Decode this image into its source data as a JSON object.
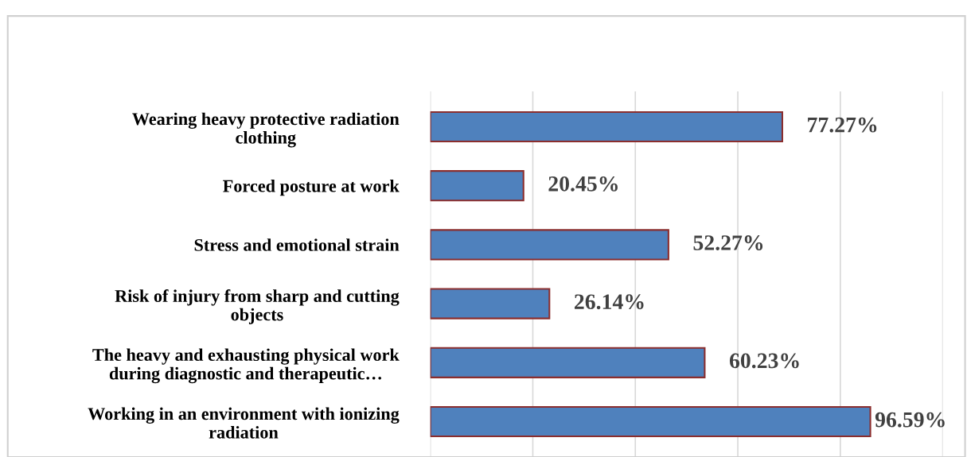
{
  "chart_data": {
    "type": "bar",
    "orientation": "horizontal",
    "categories": [
      "Wearing heavy protective radiation clothing",
      "Forced posture at work",
      "Stress and emotional strain",
      "Risk of injury from sharp and cutting objects",
      "The heavy and exhausting physical work during diagnostic and therapeutic…",
      "Working in an environment with ionizing radiation"
    ],
    "values": [
      77.27,
      20.45,
      52.27,
      26.14,
      60.23,
      96.59
    ],
    "value_labels": [
      "77.27%",
      "20.45%",
      "52.27%",
      "26.14%",
      "60.23%",
      "96.59%"
    ],
    "color": "#4f81bd",
    "xlim": [
      0,
      112.5
    ],
    "xticks": [
      {
        "value": 0,
        "label": null
      },
      {
        "value": 22.5,
        "label": null
      },
      {
        "value": 45,
        "label": null
      },
      {
        "value": 67.5,
        "label": null
      },
      {
        "value": 90,
        "label": null
      },
      {
        "value": 112.5,
        "label": null
      }
    ],
    "grid": "x"
  }
}
